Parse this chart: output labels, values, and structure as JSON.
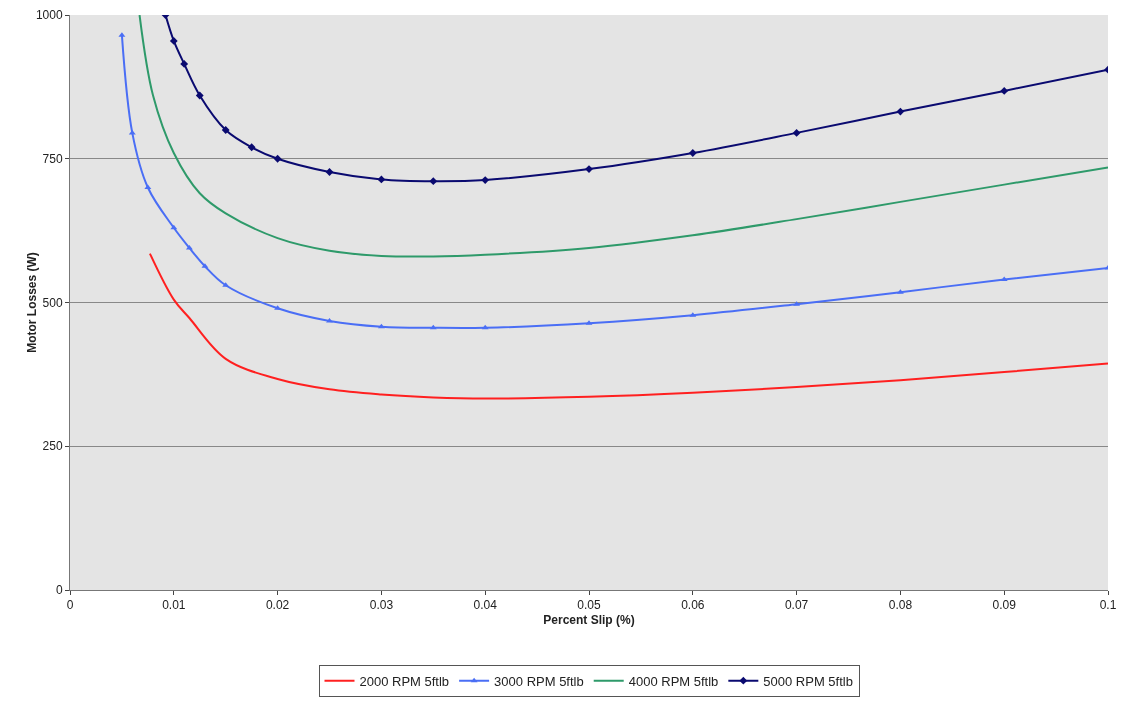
{
  "chart_data": {
    "type": "line",
    "xlabel": "Percent Slip (%)",
    "ylabel": "Motor Losses (W)",
    "xlim": [
      0,
      0.1
    ],
    "ylim": [
      0,
      1000
    ],
    "xticks": [
      0,
      0.01,
      0.02,
      0.03,
      0.04,
      0.05,
      0.06,
      0.07,
      0.08,
      0.09,
      0.1
    ],
    "yticks": [
      0,
      250,
      500,
      750,
      1000
    ],
    "grid": "y",
    "legend": "bottom",
    "series": [
      {
        "name": "2000 RPM 5ftlb",
        "color": "#ff2020",
        "marker": "none",
        "x": [
          0.0077,
          0.01,
          0.0115,
          0.015,
          0.02,
          0.025,
          0.03,
          0.035,
          0.04,
          0.05,
          0.06,
          0.07,
          0.08,
          0.09,
          0.1
        ],
        "values": [
          585,
          505,
          473,
          402,
          367,
          349,
          340,
          335,
          333,
          336,
          343,
          353,
          365,
          379,
          394
        ]
      },
      {
        "name": "3000 RPM 5ftlb",
        "color": "#4a6ef5",
        "marker": "triangle",
        "x": [
          0.005,
          0.006,
          0.0075,
          0.01,
          0.0115,
          0.013,
          0.015,
          0.02,
          0.025,
          0.03,
          0.035,
          0.04,
          0.05,
          0.06,
          0.07,
          0.08,
          0.09,
          0.1
        ],
        "values": [
          965,
          795,
          700,
          630,
          595,
          563,
          530,
          490,
          468,
          458,
          456,
          456,
          464,
          478,
          497,
          518,
          540,
          560
        ]
      },
      {
        "name": "4000 RPM 5ftlb",
        "color": "#2e9a6a",
        "marker": "none",
        "x": [
          0.0067,
          0.008,
          0.01,
          0.0125,
          0.015,
          0.02,
          0.025,
          0.03,
          0.035,
          0.04,
          0.05,
          0.06,
          0.07,
          0.08,
          0.09,
          0.1
        ],
        "values": [
          1000,
          860,
          760,
          690,
          655,
          612,
          590,
          581,
          580,
          583,
          595,
          617,
          645,
          675,
          705,
          735
        ]
      },
      {
        "name": "5000 RPM 5ftlb",
        "color": "#0a0a70",
        "marker": "diamond",
        "x": [
          0.0092,
          0.01,
          0.011,
          0.0125,
          0.015,
          0.0175,
          0.02,
          0.025,
          0.03,
          0.035,
          0.04,
          0.05,
          0.06,
          0.07,
          0.08,
          0.09,
          0.1
        ],
        "values": [
          1000,
          955,
          915,
          860,
          800,
          770,
          750,
          727,
          714,
          711,
          713,
          732,
          760,
          795,
          832,
          868,
          905
        ]
      }
    ]
  }
}
